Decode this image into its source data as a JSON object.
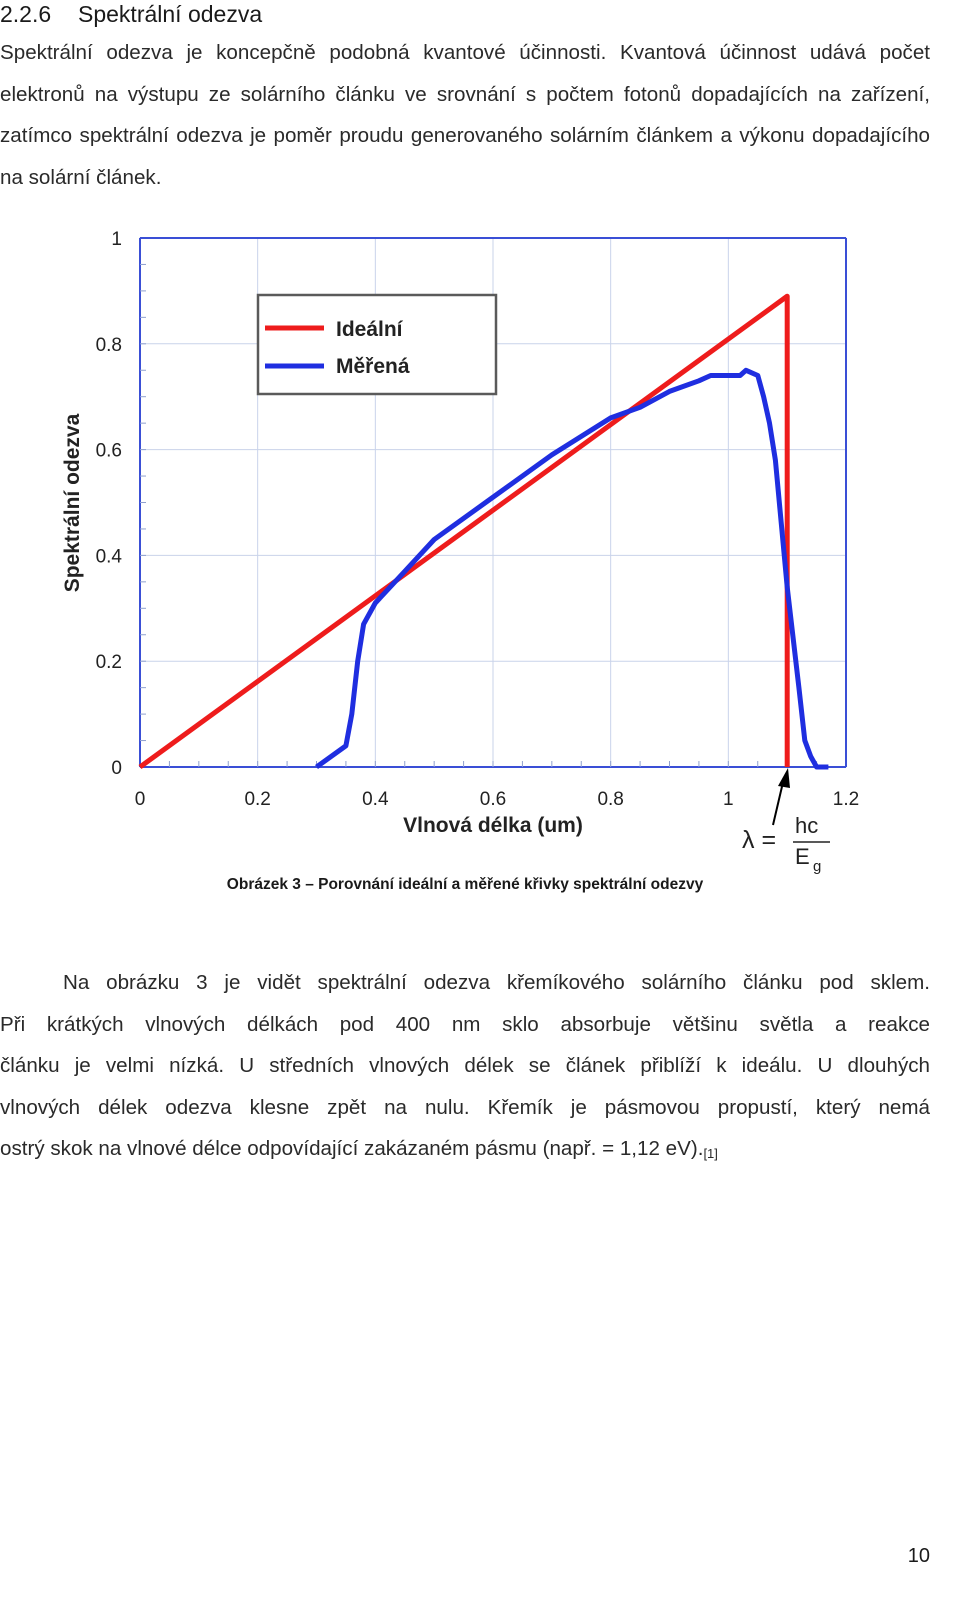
{
  "section": {
    "number": "2.2.6",
    "title": "Spektrální odezva"
  },
  "intro_paragraph": "Spektrální odezva je koncepčně podobná kvantové účinnosti. Kvantová účinnost udává počet elektronů na výstupu ze solárního článku ve srovnání s počtem fotonů dopadajících na zařízení, zatímco spektrální odezva je poměr proudu generovaného solárním článkem a výkonu dopadajícího na solární článek.",
  "chart_data": {
    "type": "line",
    "xlabel": "Vlnová délka (um)",
    "ylabel": "Spektrální odezva",
    "xlim": [
      0,
      1.2
    ],
    "ylim": [
      0,
      1
    ],
    "x_ticks": [
      "0",
      "0.2",
      "0.4",
      "0.6",
      "0.8",
      "1",
      "1.2"
    ],
    "y_ticks": [
      "0",
      "0.2",
      "0.4",
      "0.6",
      "0.8",
      "1"
    ],
    "grid": true,
    "legend": "top-left",
    "series": [
      {
        "name": "Ideální",
        "color": "#ee1c1c",
        "x": [
          0,
          1.1,
          1.1
        ],
        "y": [
          0,
          0.89,
          0
        ]
      },
      {
        "name": "Měřená",
        "color": "#1f2ee0",
        "x": [
          0.3,
          0.35,
          0.36,
          0.37,
          0.38,
          0.4,
          0.45,
          0.5,
          0.6,
          0.7,
          0.8,
          0.85,
          0.9,
          0.95,
          0.97,
          1.0,
          1.02,
          1.03,
          1.05,
          1.06,
          1.07,
          1.08,
          1.09,
          1.1,
          1.12,
          1.13,
          1.14,
          1.15,
          1.17
        ],
        "y": [
          0,
          0.04,
          0.1,
          0.2,
          0.27,
          0.31,
          0.37,
          0.43,
          0.51,
          0.59,
          0.66,
          0.68,
          0.71,
          0.73,
          0.74,
          0.74,
          0.74,
          0.75,
          0.74,
          0.7,
          0.65,
          0.58,
          0.46,
          0.34,
          0.15,
          0.05,
          0.02,
          0,
          0
        ]
      }
    ],
    "annotation": {
      "label": "λ = ",
      "numerator": "hc",
      "denominator": "E",
      "subscript": "g",
      "x": 1.1
    }
  },
  "caption": "Obrázek 3 – Porovnání ideální a měřené křivky spektrální odezvy",
  "body_paragraph": {
    "lines": [
      "Na obrázku 3 je vidět spektrální odezva křemíkového solárního článku pod sklem.",
      "Při krátkých vlnových délkách pod 400 nm sklo absorbuje většinu světla a reakce",
      "článku je velmi nízká. U středních vlnových délek se článek přiblíží k ideálu. U dlouhých",
      "vlnových délek odezva klesne zpět na nulu. Křemík je pásmovou propustí, který nemá"
    ],
    "last_line": "ostrý skok na vlnové délce odpovídající zakázaném pásmu (např. = 1,12 eV).",
    "citation": "[1]"
  },
  "page_number": "10"
}
